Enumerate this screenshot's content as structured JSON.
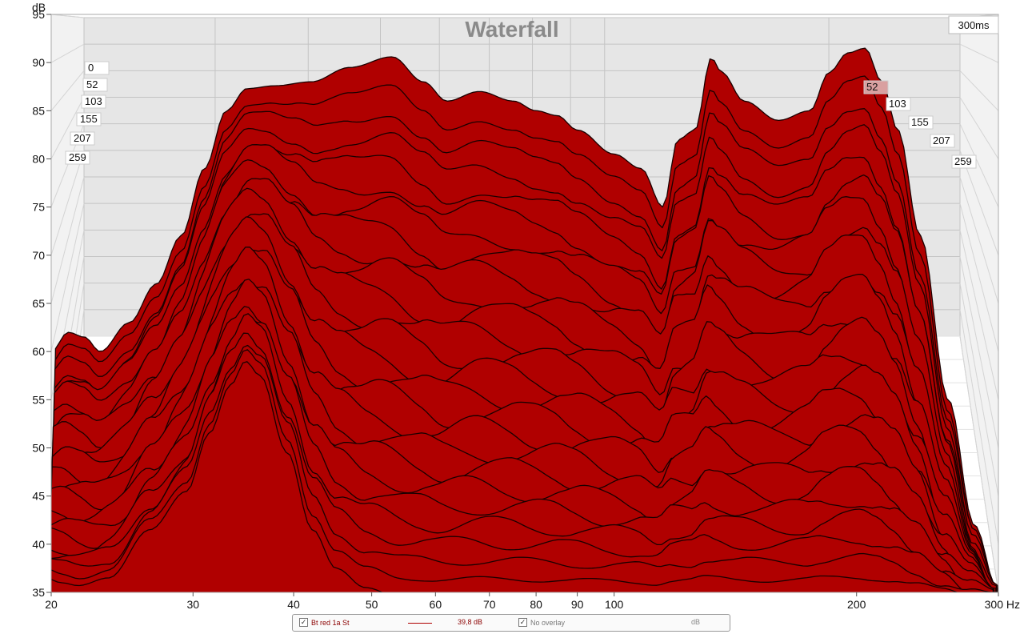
{
  "chart_data": {
    "type": "area",
    "title": "Waterfall",
    "ylabel": "dB",
    "xlabel": "Hz",
    "xscale": "log",
    "xlim": [
      20,
      300
    ],
    "ylim": [
      35,
      95
    ],
    "y_ticks": [
      "35",
      "40",
      "45",
      "50",
      "55",
      "60",
      "65",
      "70",
      "75",
      "80",
      "85",
      "90",
      "95"
    ],
    "x_ticks": [
      {
        "label": "20",
        "value": 20
      },
      {
        "label": "30",
        "value": 30
      },
      {
        "label": "40",
        "value": 40
      },
      {
        "label": "50",
        "value": 50
      },
      {
        "label": "60",
        "value": 60
      },
      {
        "label": "70",
        "value": 70
      },
      {
        "label": "80",
        "value": 80
      },
      {
        "label": "90",
        "value": 90
      },
      {
        "label": "100",
        "value": 100
      },
      {
        "label": "200",
        "value": 200
      },
      {
        "label": "300 Hz",
        "value": 300
      }
    ],
    "time_axis_label": "300ms",
    "time_ticks_left": [
      "0",
      "52",
      "103",
      "155",
      "207",
      "259"
    ],
    "time_ticks_right": [
      "52",
      "103",
      "155",
      "207",
      "259"
    ],
    "fill_color": "#b00000",
    "line_color": "#1a0000",
    "slice_count": 26,
    "back_slice_db": [
      [
        20,
        60
      ],
      [
        21,
        62
      ],
      [
        22,
        61.5
      ],
      [
        23,
        60
      ],
      [
        25,
        63
      ],
      [
        27,
        67
      ],
      [
        29,
        72
      ],
      [
        31,
        79
      ],
      [
        33,
        85
      ],
      [
        35,
        87.3
      ],
      [
        38,
        87.6
      ],
      [
        42,
        88
      ],
      [
        47,
        89.5
      ],
      [
        53,
        90.6
      ],
      [
        58,
        88
      ],
      [
        62,
        86
      ],
      [
        68,
        87
      ],
      [
        75,
        86
      ],
      [
        80,
        85
      ],
      [
        85,
        84.5
      ],
      [
        90,
        83
      ],
      [
        100,
        80.5
      ],
      [
        108,
        79
      ],
      [
        115,
        75
      ],
      [
        120,
        82
      ],
      [
        126,
        83
      ],
      [
        132,
        90.5
      ],
      [
        136,
        89
      ],
      [
        145,
        86
      ],
      [
        160,
        84
      ],
      [
        175,
        85
      ],
      [
        185,
        89
      ],
      [
        195,
        91
      ],
      [
        205,
        91.5
      ],
      [
        215,
        88
      ],
      [
        225,
        83
      ],
      [
        240,
        72
      ],
      [
        260,
        55
      ],
      [
        280,
        42
      ],
      [
        300,
        35
      ]
    ],
    "front_slice_db": [
      [
        20,
        37
      ],
      [
        21,
        36.5
      ],
      [
        22,
        36.2
      ],
      [
        24,
        37
      ],
      [
        27,
        42
      ],
      [
        30,
        46
      ],
      [
        32,
        52
      ],
      [
        34,
        57
      ],
      [
        35.5,
        59.5
      ],
      [
        37,
        58
      ],
      [
        40,
        50
      ],
      [
        43,
        42
      ],
      [
        46,
        38
      ],
      [
        50,
        36
      ],
      [
        55,
        35
      ],
      [
        300,
        35
      ]
    ]
  },
  "legend": {
    "series_name": "Bt red 1a St",
    "series_level": "39,8 dB",
    "overlay_label": "No overlay",
    "unit": "dB",
    "check_glyph": "✓"
  }
}
